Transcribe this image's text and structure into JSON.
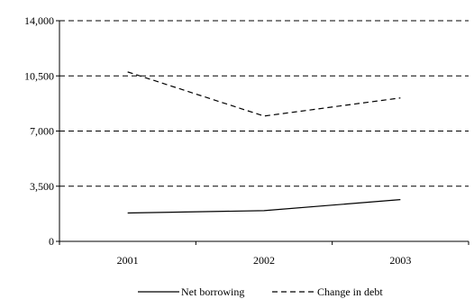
{
  "chart_data": {
    "type": "line",
    "categories": [
      "2001",
      "2002",
      "2003"
    ],
    "series": [
      {
        "name": "Net borrowing",
        "values": [
          1800,
          1950,
          2650
        ],
        "line_style": "solid",
        "color": "#000000"
      },
      {
        "name": "Change in debt",
        "values": [
          10750,
          7950,
          9100
        ],
        "line_style": "dashed",
        "color": "#000000"
      }
    ],
    "y_ticks": [
      "0",
      "3,500",
      "7,000",
      "10,500",
      "14,000"
    ],
    "ylim": [
      0,
      14000
    ],
    "grid": "horizontal dashed",
    "legend_position": "bottom-center"
  }
}
